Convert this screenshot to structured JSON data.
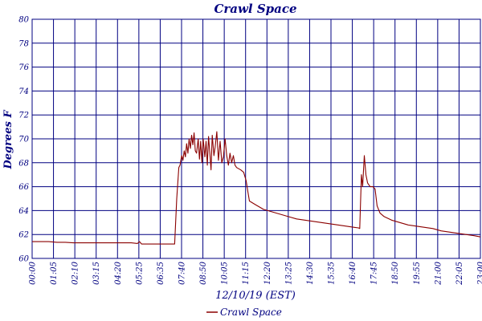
{
  "chart_data": {
    "type": "line",
    "title": "Crawl Space",
    "xlabel": "12/10/19 (EST)",
    "ylabel": "Degrees F",
    "ylim": [
      60,
      80
    ],
    "yticks": [
      "60",
      "62",
      "64",
      "66",
      "68",
      "70",
      "72",
      "74",
      "76",
      "78",
      "80"
    ],
    "xticks": [
      "00:00",
      "01:05",
      "02:10",
      "03:15",
      "04:20",
      "05:25",
      "06:35",
      "07:40",
      "08:50",
      "10:05",
      "11:15",
      "12:20",
      "13:25",
      "14:30",
      "15:35",
      "16:40",
      "17:45",
      "18:50",
      "19:55",
      "21:00",
      "22:05",
      "23:00"
    ],
    "grid": true,
    "legend": "bottom-center",
    "colors": {
      "grid": "#000080",
      "series": "#8B0000",
      "text": "#000080"
    },
    "series": [
      {
        "name": "Crawl Space",
        "points": [
          [
            0,
            61.4
          ],
          [
            20,
            61.4
          ],
          [
            40,
            61.4
          ],
          [
            60,
            61.35
          ],
          [
            80,
            61.35
          ],
          [
            100,
            61.3
          ],
          [
            120,
            61.3
          ],
          [
            140,
            61.3
          ],
          [
            160,
            61.3
          ],
          [
            180,
            61.3
          ],
          [
            200,
            61.3
          ],
          [
            220,
            61.3
          ],
          [
            240,
            61.3
          ],
          [
            255,
            61.25
          ],
          [
            260,
            61.4
          ],
          [
            265,
            61.2
          ],
          [
            280,
            61.2
          ],
          [
            300,
            61.2
          ],
          [
            320,
            61.2
          ],
          [
            335,
            61.2
          ],
          [
            340,
            61.2
          ],
          [
            345,
            61.2
          ],
          [
            350,
            65.0
          ],
          [
            355,
            67.6
          ],
          [
            358,
            67.8
          ],
          [
            362,
            68.6
          ],
          [
            365,
            68.2
          ],
          [
            368,
            69.0
          ],
          [
            371,
            68.5
          ],
          [
            374,
            69.6
          ],
          [
            377,
            68.8
          ],
          [
            380,
            70.0
          ],
          [
            383,
            69.2
          ],
          [
            386,
            70.3
          ],
          [
            389,
            69.5
          ],
          [
            392,
            70.5
          ],
          [
            395,
            69.0
          ],
          [
            398,
            68.8
          ],
          [
            402,
            70.0
          ],
          [
            405,
            68.3
          ],
          [
            408,
            69.8
          ],
          [
            411,
            68.0
          ],
          [
            414,
            70.0
          ],
          [
            418,
            68.5
          ],
          [
            421,
            69.8
          ],
          [
            424,
            67.8
          ],
          [
            427,
            70.2
          ],
          [
            430,
            68.9
          ],
          [
            433,
            67.4
          ],
          [
            436,
            70.3
          ],
          [
            440,
            68.6
          ],
          [
            443,
            69.3
          ],
          [
            447,
            70.6
          ],
          [
            451,
            68.2
          ],
          [
            455,
            69.8
          ],
          [
            459,
            68.0
          ],
          [
            463,
            68.5
          ],
          [
            467,
            70.0
          ],
          [
            471,
            68.6
          ],
          [
            475,
            67.8
          ],
          [
            479,
            68.8
          ],
          [
            483,
            68.0
          ],
          [
            487,
            68.6
          ],
          [
            491,
            67.8
          ],
          [
            495,
            67.6
          ],
          [
            505,
            67.4
          ],
          [
            512,
            67.2
          ],
          [
            518,
            66.5
          ],
          [
            522,
            65.6
          ],
          [
            526,
            64.8
          ],
          [
            540,
            64.5
          ],
          [
            560,
            64.1
          ],
          [
            580,
            63.9
          ],
          [
            600,
            63.7
          ],
          [
            620,
            63.5
          ],
          [
            640,
            63.3
          ],
          [
            660,
            63.2
          ],
          [
            680,
            63.1
          ],
          [
            700,
            63.0
          ],
          [
            720,
            62.9
          ],
          [
            740,
            62.8
          ],
          [
            760,
            62.7
          ],
          [
            780,
            62.6
          ],
          [
            790,
            62.55
          ],
          [
            793,
            62.5
          ],
          [
            797,
            67.0
          ],
          [
            800,
            66.0
          ],
          [
            804,
            68.6
          ],
          [
            808,
            67.0
          ],
          [
            812,
            66.3
          ],
          [
            818,
            66.0
          ],
          [
            825,
            66.0
          ],
          [
            830,
            65.8
          ],
          [
            835,
            64.4
          ],
          [
            842,
            63.8
          ],
          [
            852,
            63.5
          ],
          [
            870,
            63.2
          ],
          [
            890,
            63.0
          ],
          [
            910,
            62.8
          ],
          [
            930,
            62.7
          ],
          [
            950,
            62.6
          ],
          [
            970,
            62.5
          ],
          [
            990,
            62.3
          ],
          [
            1010,
            62.2
          ],
          [
            1030,
            62.1
          ],
          [
            1050,
            62.0
          ],
          [
            1070,
            61.9
          ],
          [
            1085,
            61.8
          ]
        ]
      }
    ]
  }
}
